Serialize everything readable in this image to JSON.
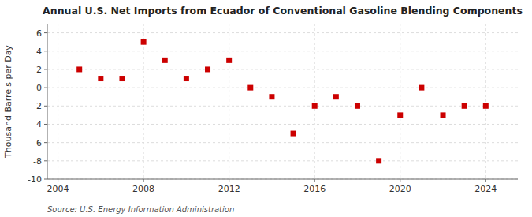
{
  "chart_data": {
    "type": "scatter",
    "title": "Annual U.S. Net Imports from Ecuador of Conventional Gasoline Blending Components",
    "ylabel": "Thousand Barrels per Day",
    "source": "Source: U.S. Energy Information Administration",
    "x": [
      2005,
      2006,
      2007,
      2008,
      2009,
      2010,
      2011,
      2012,
      2013,
      2014,
      2015,
      2016,
      2017,
      2018,
      2019,
      2020,
      2021,
      2022,
      2023,
      2024
    ],
    "values": [
      2.0,
      1.0,
      1.0,
      5.0,
      3.0,
      1.0,
      2.0,
      3.0,
      0.0,
      -1.0,
      -5.0,
      -2.0,
      -1.0,
      -2.0,
      -8.0,
      -3.0,
      0.0,
      -3.0,
      -2.0,
      -2.0
    ],
    "color": "#cc0000",
    "marker": "square",
    "xlim": [
      2003.5,
      2025.5
    ],
    "ylim": [
      -10,
      7
    ],
    "xticks": [
      2004,
      2008,
      2012,
      2016,
      2020,
      2024
    ],
    "yticks": [
      -10,
      -8,
      -6,
      -4,
      -2,
      0,
      2,
      4,
      6
    ],
    "grid": true
  }
}
